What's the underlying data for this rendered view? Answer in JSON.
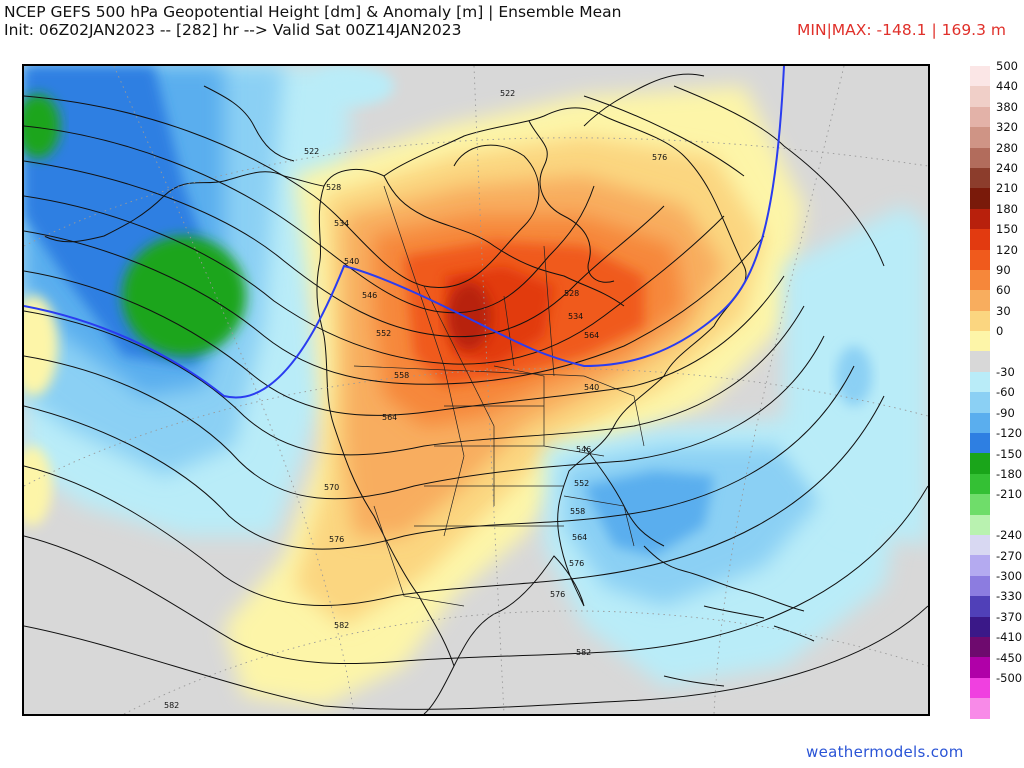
{
  "header": {
    "title": "NCEP GEFS 500 hPa Geopotential Height [dm] & Anomaly [m] | Ensemble Mean",
    "subtitle": "Init: 06Z02JAN2023 -- [282] hr --> Valid Sat 00Z14JAN2023",
    "minmax": "MIN|MAX: -148.1 | 169.3 m"
  },
  "colorbar": {
    "unit": "m",
    "levels": [
      {
        "label": "500",
        "color": "#fbe6e6"
      },
      {
        "label": "440",
        "color": "#f0cfc8"
      },
      {
        "label": "380",
        "color": "#e3b2a8"
      },
      {
        "label": "320",
        "color": "#cf9485"
      },
      {
        "label": "280",
        "color": "#b26c5c"
      },
      {
        "label": "240",
        "color": "#8c3d2c"
      },
      {
        "label": "210",
        "color": "#7a1a0a"
      },
      {
        "label": "180",
        "color": "#b8200c"
      },
      {
        "label": "150",
        "color": "#e23a10"
      },
      {
        "label": "120",
        "color": "#f05a1c"
      },
      {
        "label": "90",
        "color": "#f6873a"
      },
      {
        "label": "60",
        "color": "#f8ad5e"
      },
      {
        "label": "30",
        "color": "#fbd680"
      },
      {
        "label": "0",
        "color": "#fdf5a8"
      },
      {
        "label": "",
        "color": "#d8d8d8"
      },
      {
        "label": "-30",
        "color": "#b9ecf8"
      },
      {
        "label": "-60",
        "color": "#8bd0f4"
      },
      {
        "label": "-90",
        "color": "#5aaeee"
      },
      {
        "label": "-120",
        "color": "#2e7fe2"
      },
      {
        "label": "-150",
        "color": "#1aa51a"
      },
      {
        "label": "-180",
        "color": "#34c034"
      },
      {
        "label": "-210",
        "color": "#6fdd6a"
      },
      {
        "label": "",
        "color": "#b9f2b0"
      },
      {
        "label": "-240",
        "color": "#d8d8f2"
      },
      {
        "label": "-270",
        "color": "#b4aaf0"
      },
      {
        "label": "-300",
        "color": "#8c7ce0"
      },
      {
        "label": "-330",
        "color": "#5040b8"
      },
      {
        "label": "-370",
        "color": "#3a1888"
      },
      {
        "label": "-410",
        "color": "#6e0a6e"
      },
      {
        "label": "-450",
        "color": "#b000a8"
      },
      {
        "label": "-500",
        "color": "#f040e0"
      },
      {
        "label": "",
        "color": "#f88ae8"
      }
    ]
  },
  "contour_labels": [
    "522",
    "528",
    "534",
    "540",
    "546",
    "552",
    "558",
    "564",
    "570",
    "576",
    "582",
    "522",
    "528",
    "534",
    "540",
    "546",
    "552",
    "558",
    "564",
    "576",
    "582",
    "582",
    "576",
    "564",
    "576"
  ],
  "credit": "weathermodels.com"
}
